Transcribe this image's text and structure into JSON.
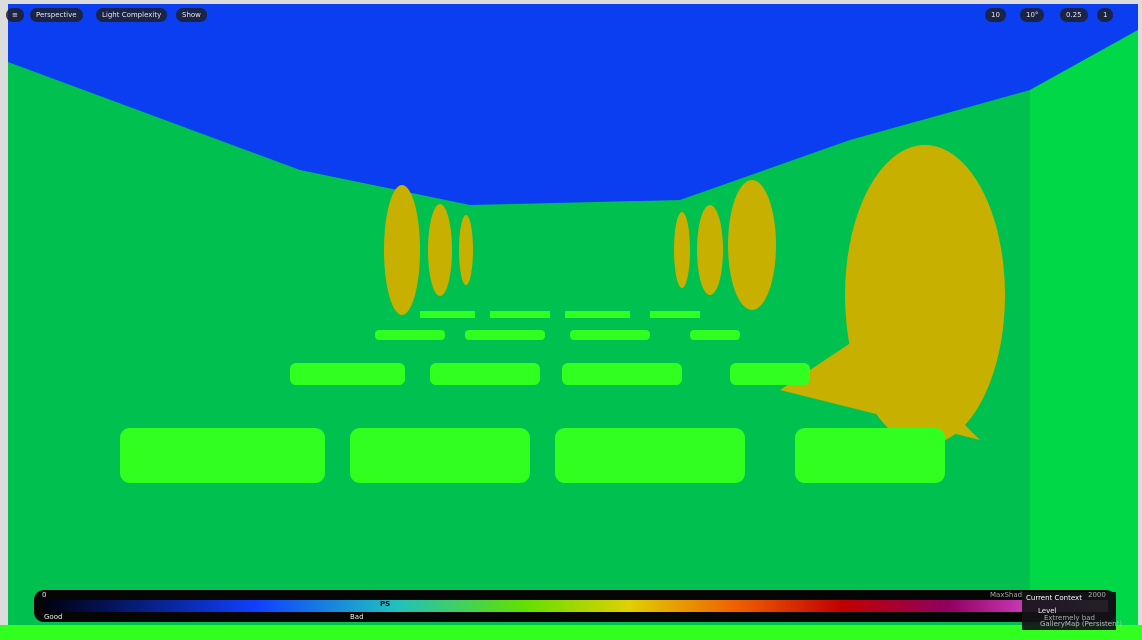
{
  "toolbar": {
    "left": [
      "Perspective",
      "Light Complexity",
      "Show"
    ],
    "right": [
      "10",
      "10°",
      "0.25",
      "1"
    ]
  },
  "legend": {
    "min": 0,
    "marker": "PS",
    "good": "Good",
    "bad": "Bad",
    "max_label": "MaxShad",
    "max_value": 2000,
    "extremely_bad": "Extremely bad"
  },
  "context_menu": {
    "title": "Current Context",
    "level": "Level",
    "map": "GalleryMap (Persistent)"
  }
}
